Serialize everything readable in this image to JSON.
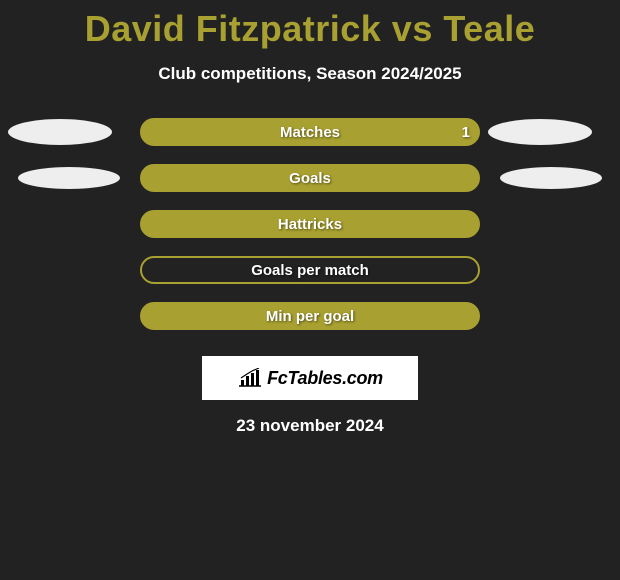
{
  "title": "David Fitzpatrick vs Teale",
  "subtitle": "Club competitions, Season 2024/2025",
  "date": "23 november 2024",
  "logo_text": "FcTables.com",
  "colors": {
    "background": "#222222",
    "accent": "#a8a030",
    "text": "#ffffff",
    "ellipse": "#eeeeee",
    "logo_bg": "#ffffff",
    "logo_text": "#000000"
  },
  "rows": [
    {
      "label": "Matches",
      "filled": true,
      "value_right": "1",
      "show_left_ellipse": true,
      "show_right_ellipse": true,
      "ellipse_variant": 0
    },
    {
      "label": "Goals",
      "filled": true,
      "value_right": "",
      "show_left_ellipse": true,
      "show_right_ellipse": true,
      "ellipse_variant": 1
    },
    {
      "label": "Hattricks",
      "filled": true,
      "value_right": "",
      "show_left_ellipse": false,
      "show_right_ellipse": false
    },
    {
      "label": "Goals per match",
      "filled": false,
      "value_right": "",
      "show_left_ellipse": false,
      "show_right_ellipse": false
    },
    {
      "label": "Min per goal",
      "filled": true,
      "value_right": "",
      "show_left_ellipse": false,
      "show_right_ellipse": false
    }
  ]
}
